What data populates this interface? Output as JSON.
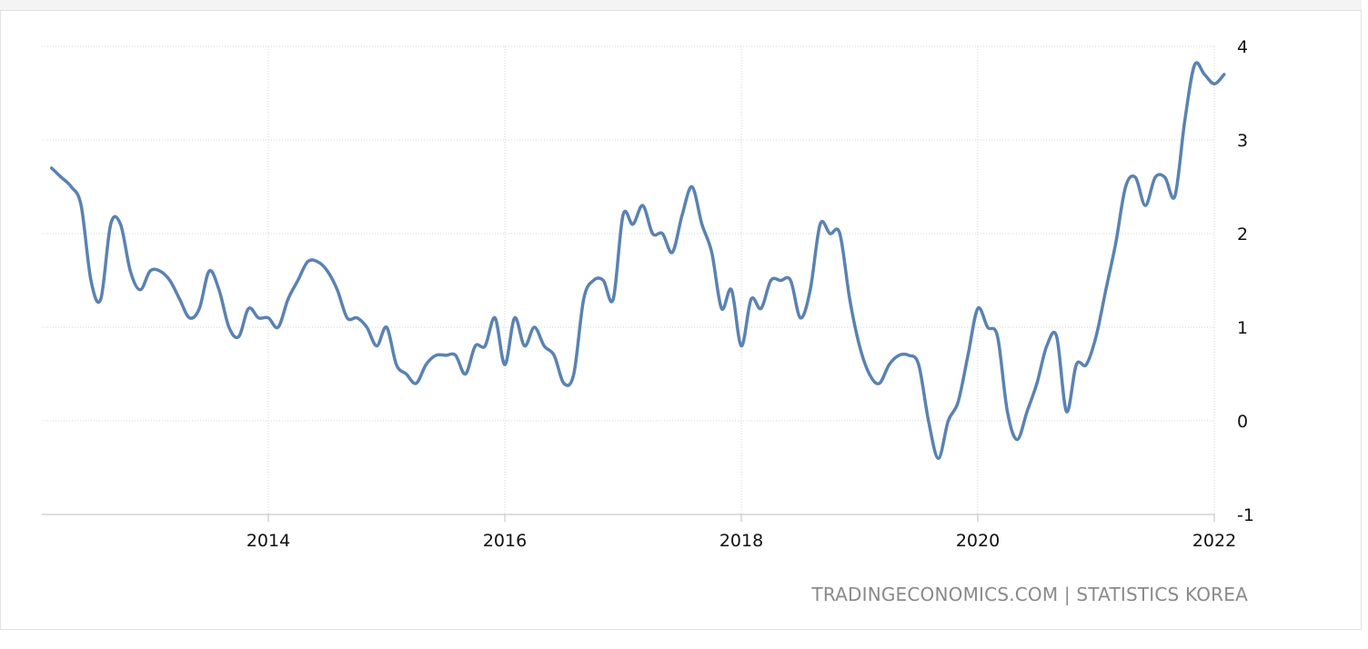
{
  "source_text": "TRADINGECONOMICS.COM | STATISTICS KOREA",
  "chart_data": {
    "type": "line",
    "title": "",
    "xlabel": "",
    "ylabel": "",
    "x_ticks": [
      "2014",
      "2016",
      "2018",
      "2020",
      "2022"
    ],
    "y_ticks": [
      "4",
      "3",
      "2",
      "1",
      "0",
      "-1"
    ],
    "ylim": [
      -1,
      4
    ],
    "grid": true,
    "y_axis_side": "right",
    "line_color": "#5a82b2",
    "series": [
      {
        "x": [
          "2012-03",
          "2012-04",
          "2012-05",
          "2012-06",
          "2012-07",
          "2012-08",
          "2012-09",
          "2012-10",
          "2012-11",
          "2012-12",
          "2013-01",
          "2013-02",
          "2013-03",
          "2013-04",
          "2013-05",
          "2013-06",
          "2013-07",
          "2013-08",
          "2013-09",
          "2013-10",
          "2013-11",
          "2013-12",
          "2014-01",
          "2014-02",
          "2014-03",
          "2014-04",
          "2014-05",
          "2014-06",
          "2014-07",
          "2014-08",
          "2014-09",
          "2014-10",
          "2014-11",
          "2014-12",
          "2015-01",
          "2015-02",
          "2015-03",
          "2015-04",
          "2015-05",
          "2015-06",
          "2015-07",
          "2015-08",
          "2015-09",
          "2015-10",
          "2015-11",
          "2015-12",
          "2016-01",
          "2016-02",
          "2016-03",
          "2016-04",
          "2016-05",
          "2016-06",
          "2016-07",
          "2016-08",
          "2016-09",
          "2016-10",
          "2016-11",
          "2016-12",
          "2017-01",
          "2017-02",
          "2017-03",
          "2017-04",
          "2017-05",
          "2017-06",
          "2017-07",
          "2017-08",
          "2017-09",
          "2017-10",
          "2017-11",
          "2017-12",
          "2018-01",
          "2018-02",
          "2018-03",
          "2018-04",
          "2018-05",
          "2018-06",
          "2018-07",
          "2018-08",
          "2018-09",
          "2018-10",
          "2018-11",
          "2018-12",
          "2019-01",
          "2019-02",
          "2019-03",
          "2019-04",
          "2019-05",
          "2019-06",
          "2019-07",
          "2019-08",
          "2019-09",
          "2019-10",
          "2019-11",
          "2019-12",
          "2020-01",
          "2020-02",
          "2020-03",
          "2020-04",
          "2020-05",
          "2020-06",
          "2020-07",
          "2020-08",
          "2020-09",
          "2020-10",
          "2020-11",
          "2020-12",
          "2021-01",
          "2021-02",
          "2021-03",
          "2021-04",
          "2021-05",
          "2021-06",
          "2021-07",
          "2021-08",
          "2021-09",
          "2021-10",
          "2021-11",
          "2021-12",
          "2022-01",
          "2022-02"
        ],
        "y": [
          2.7,
          2.6,
          2.5,
          2.3,
          1.5,
          1.3,
          2.1,
          2.1,
          1.6,
          1.4,
          1.6,
          1.6,
          1.5,
          1.3,
          1.1,
          1.2,
          1.6,
          1.4,
          1.0,
          0.9,
          1.2,
          1.1,
          1.1,
          1.0,
          1.3,
          1.5,
          1.7,
          1.7,
          1.6,
          1.4,
          1.1,
          1.1,
          1.0,
          0.8,
          1.0,
          0.6,
          0.5,
          0.4,
          0.6,
          0.7,
          0.7,
          0.7,
          0.5,
          0.8,
          0.8,
          1.1,
          0.6,
          1.1,
          0.8,
          1.0,
          0.8,
          0.7,
          0.4,
          0.5,
          1.3,
          1.5,
          1.5,
          1.3,
          2.2,
          2.1,
          2.3,
          2.0,
          2.0,
          1.8,
          2.2,
          2.5,
          2.1,
          1.8,
          1.2,
          1.4,
          0.8,
          1.3,
          1.2,
          1.5,
          1.5,
          1.5,
          1.1,
          1.4,
          2.1,
          2.0,
          2.0,
          1.3,
          0.8,
          0.5,
          0.4,
          0.6,
          0.7,
          0.7,
          0.6,
          0.0,
          -0.4,
          0.0,
          0.2,
          0.7,
          1.2,
          1.0,
          0.9,
          0.1,
          -0.2,
          0.1,
          0.4,
          0.8,
          0.9,
          0.1,
          0.6,
          0.6,
          0.9,
          1.4,
          1.9,
          2.5,
          2.6,
          2.3,
          2.6,
          2.6,
          2.4,
          3.2,
          3.8,
          3.7,
          3.6,
          3.7
        ]
      }
    ]
  }
}
